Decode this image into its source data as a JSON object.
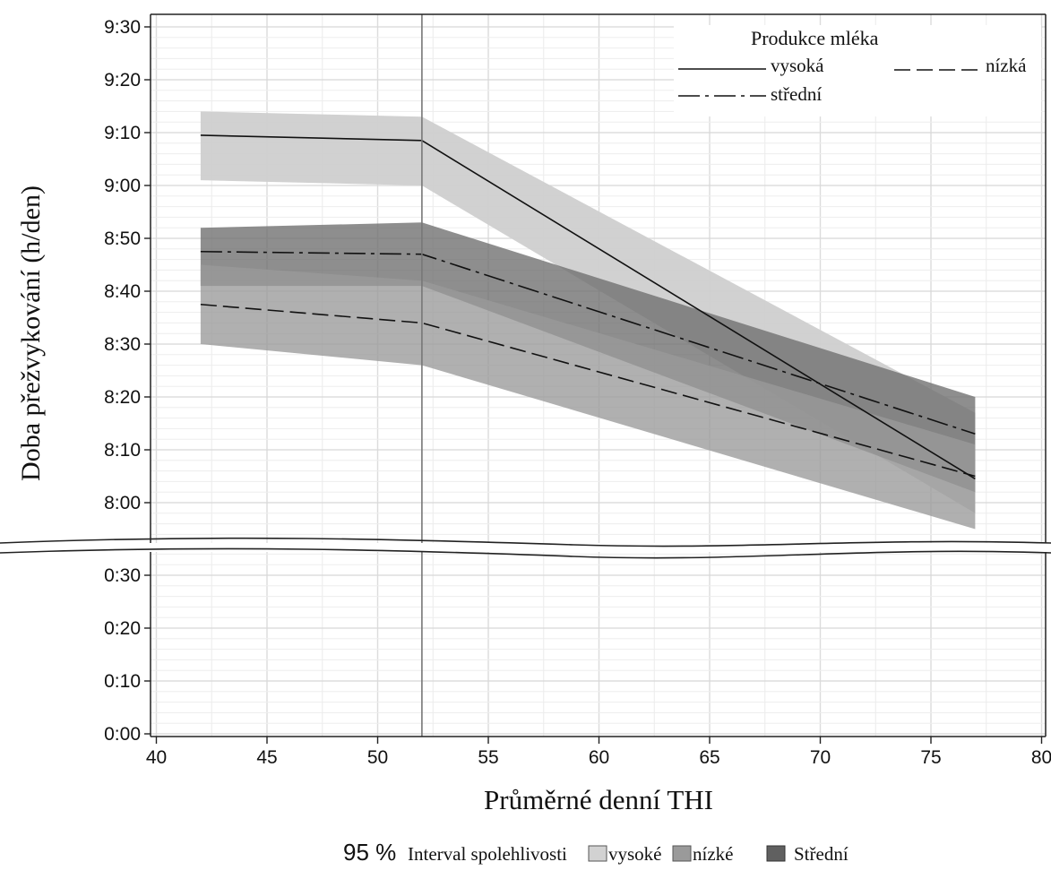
{
  "chart_data": {
    "type": "line",
    "title": "",
    "xlabel": "Průměrné denní THI",
    "ylabel": "Doba přežvykování (h/den)",
    "xlim": [
      40,
      80
    ],
    "x_ticks": [
      "40",
      "45",
      "50",
      "55",
      "60",
      "65",
      "70",
      "75",
      "80"
    ],
    "y_ticks_upper": [
      "8:00",
      "8:10",
      "8:20",
      "8:30",
      "8:40",
      "8:50",
      "9:00",
      "9:10",
      "9:20",
      "9:30"
    ],
    "y_ticks_lower": [
      "0:00",
      "0:10",
      "0:20",
      "0:30"
    ],
    "y_axis_break": true,
    "reference_line_x": 52,
    "grid": true,
    "x": [
      42,
      52,
      77
    ],
    "legend": {
      "title": "Produkce mléka",
      "placement": "top-right",
      "items": [
        "vysoká",
        "nízká",
        "střední"
      ]
    },
    "series": [
      {
        "name": "vysoká",
        "style": "solid",
        "values": [
          549.5,
          548.5,
          484.5
        ],
        "ci_lower": [
          541,
          540,
          478
        ],
        "ci_upper": [
          554,
          553,
          497
        ]
      },
      {
        "name": "střední",
        "style": "dash-dot",
        "values": [
          527.5,
          527,
          493
        ],
        "ci_lower": [
          521,
          521,
          482
        ],
        "ci_upper": [
          532,
          533,
          500
        ]
      },
      {
        "name": "nízká",
        "style": "dashed",
        "values": [
          517.5,
          514,
          485
        ],
        "ci_lower": [
          510,
          506,
          475
        ],
        "ci_upper": [
          525,
          522,
          491
        ]
      }
    ],
    "ci_legend": {
      "prefix": "95 %",
      "label": "Interval spolehlivosti",
      "items": [
        {
          "label": "vysoké",
          "color": "#d2d2d2"
        },
        {
          "label": "nízké",
          "color": "#9a9a9a"
        },
        {
          "label": "Střední",
          "color": "#606060"
        }
      ]
    },
    "colors": {
      "ci_high": "#cfcfcf",
      "ci_low": "#9a9a9a",
      "ci_mid": "#6e6e6e",
      "grid": "#e2e2e2",
      "line": "#111111"
    }
  }
}
